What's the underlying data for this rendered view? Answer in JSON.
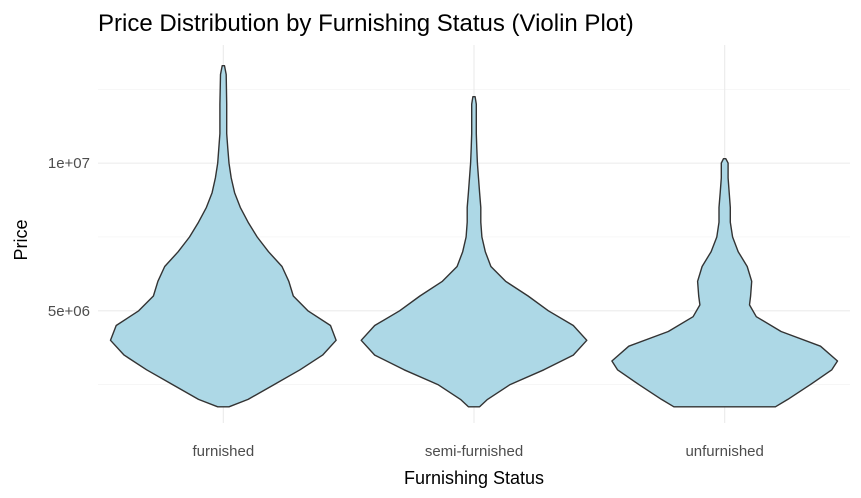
{
  "chart_data": {
    "type": "violin",
    "title": "Price Distribution by Furnishing Status (Violin Plot)",
    "xlabel": "Furnishing Status",
    "ylabel": "Price",
    "ylim": [
      1200000,
      14000000
    ],
    "y_ticks": [
      5000000,
      10000000
    ],
    "y_tick_labels": [
      "5e+06",
      "1e+07"
    ],
    "y_minor_ticks": [
      2500000,
      7500000,
      12500000
    ],
    "grid": true,
    "fill_color": "#add8e6",
    "outline_color": "#333333",
    "categories": [
      "furnished",
      "semi-furnished",
      "unfurnished"
    ],
    "series": [
      {
        "category": "furnished",
        "min": 1750000,
        "max": 13300000,
        "density": [
          [
            1750000,
            0.05
          ],
          [
            2000000,
            0.22
          ],
          [
            2500000,
            0.45
          ],
          [
            3000000,
            0.68
          ],
          [
            3500000,
            0.88
          ],
          [
            4000000,
            1.0
          ],
          [
            4500000,
            0.95
          ],
          [
            5000000,
            0.75
          ],
          [
            5500000,
            0.62
          ],
          [
            6000000,
            0.58
          ],
          [
            6500000,
            0.52
          ],
          [
            7000000,
            0.4
          ],
          [
            7500000,
            0.3
          ],
          [
            8000000,
            0.22
          ],
          [
            8500000,
            0.15
          ],
          [
            9000000,
            0.1
          ],
          [
            9500000,
            0.07
          ],
          [
            10000000,
            0.05
          ],
          [
            10500000,
            0.04
          ],
          [
            11000000,
            0.03
          ],
          [
            12000000,
            0.03
          ],
          [
            13000000,
            0.025
          ],
          [
            13300000,
            0.01
          ]
        ]
      },
      {
        "category": "semi-furnished",
        "min": 1750000,
        "max": 12250000,
        "density": [
          [
            1750000,
            0.05
          ],
          [
            2000000,
            0.12
          ],
          [
            2500000,
            0.32
          ],
          [
            3000000,
            0.62
          ],
          [
            3500000,
            0.88
          ],
          [
            4000000,
            1.0
          ],
          [
            4500000,
            0.88
          ],
          [
            5000000,
            0.66
          ],
          [
            5500000,
            0.48
          ],
          [
            6000000,
            0.28
          ],
          [
            6500000,
            0.15
          ],
          [
            7000000,
            0.1
          ],
          [
            7500000,
            0.07
          ],
          [
            8000000,
            0.06
          ],
          [
            8500000,
            0.06
          ],
          [
            9000000,
            0.05
          ],
          [
            9500000,
            0.04
          ],
          [
            10000000,
            0.03
          ],
          [
            10500000,
            0.025
          ],
          [
            11000000,
            0.02
          ],
          [
            12000000,
            0.02
          ],
          [
            12250000,
            0.01
          ]
        ]
      },
      {
        "category": "unfurnished",
        "min": 1750000,
        "max": 10150000,
        "density": [
          [
            1750000,
            0.45
          ],
          [
            2000000,
            0.56
          ],
          [
            2500000,
            0.76
          ],
          [
            3000000,
            0.95
          ],
          [
            3300000,
            1.0
          ],
          [
            3800000,
            0.85
          ],
          [
            4300000,
            0.5
          ],
          [
            4800000,
            0.28
          ],
          [
            5200000,
            0.22
          ],
          [
            5500000,
            0.23
          ],
          [
            6000000,
            0.24
          ],
          [
            6500000,
            0.2
          ],
          [
            7000000,
            0.12
          ],
          [
            7500000,
            0.07
          ],
          [
            8000000,
            0.05
          ],
          [
            8500000,
            0.05
          ],
          [
            9000000,
            0.04
          ],
          [
            9500000,
            0.03
          ],
          [
            10000000,
            0.03
          ],
          [
            10150000,
            0.01
          ]
        ]
      }
    ]
  }
}
